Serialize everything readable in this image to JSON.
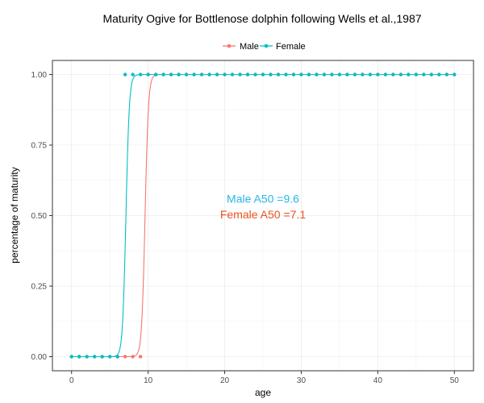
{
  "chart_data": {
    "type": "line",
    "title": "Maturity Ogive for Bottlenose dolphin following Wells et al.,1987",
    "xlabel": "age",
    "ylabel": "percentage of maturity",
    "xlim": [
      -2.5,
      52.5
    ],
    "ylim": [
      -0.05,
      1.05
    ],
    "x_ticks": [
      0,
      10,
      20,
      30,
      40,
      50
    ],
    "x_tick_labels": [
      "0",
      "10",
      "20",
      "30",
      "40",
      "50"
    ],
    "y_ticks": [
      0,
      0.25,
      0.5,
      0.75,
      1.0
    ],
    "y_tick_labels": [
      "0.00",
      "0.25",
      "0.50",
      "0.75",
      "1.00"
    ],
    "grid": true,
    "legend_position": "top",
    "series": [
      {
        "name": "Male",
        "color": "#F8766D",
        "a50": 9.6,
        "points_x": [
          0,
          1,
          2,
          3,
          4,
          5,
          6,
          7,
          8,
          9,
          10,
          11,
          12,
          13,
          14,
          15,
          16,
          17,
          18,
          19,
          20,
          21,
          22,
          23,
          24,
          25,
          26,
          27,
          28,
          29,
          30,
          31,
          32,
          33,
          34,
          35,
          36,
          37,
          38,
          39,
          40,
          41,
          42,
          43,
          44,
          45,
          46,
          47,
          48,
          49,
          50
        ],
        "points_y": [
          0,
          0,
          0,
          0,
          0,
          0,
          0,
          0,
          0,
          0,
          1,
          1,
          1,
          1,
          1,
          1,
          1,
          1,
          1,
          1,
          1,
          1,
          1,
          1,
          1,
          1,
          1,
          1,
          1,
          1,
          1,
          1,
          1,
          1,
          1,
          1,
          1,
          1,
          1,
          1,
          1,
          1,
          1,
          1,
          1,
          1,
          1,
          1,
          1,
          1,
          1
        ]
      },
      {
        "name": "Female",
        "color": "#00BFC4",
        "a50": 7.1,
        "points_x": [
          0,
          1,
          2,
          3,
          4,
          5,
          6,
          7,
          8,
          9,
          10,
          11,
          12,
          13,
          14,
          15,
          16,
          17,
          18,
          19,
          20,
          21,
          22,
          23,
          24,
          25,
          26,
          27,
          28,
          29,
          30,
          31,
          32,
          33,
          34,
          35,
          36,
          37,
          38,
          39,
          40,
          41,
          42,
          43,
          44,
          45,
          46,
          47,
          48,
          49,
          50
        ],
        "points_y": [
          0,
          0,
          0,
          0,
          0,
          0,
          0,
          1,
          1,
          1,
          1,
          1,
          1,
          1,
          1,
          1,
          1,
          1,
          1,
          1,
          1,
          1,
          1,
          1,
          1,
          1,
          1,
          1,
          1,
          1,
          1,
          1,
          1,
          1,
          1,
          1,
          1,
          1,
          1,
          1,
          1,
          1,
          1,
          1,
          1,
          1,
          1,
          1,
          1,
          1,
          1
        ]
      }
    ],
    "annotations": [
      {
        "text": "Male A50 =9.6",
        "color": "#29B6E8",
        "x": 25,
        "y": 0.56
      },
      {
        "text": "Female A50 =7.1",
        "color": "#E8531E",
        "x": 25,
        "y": 0.505
      }
    ]
  }
}
